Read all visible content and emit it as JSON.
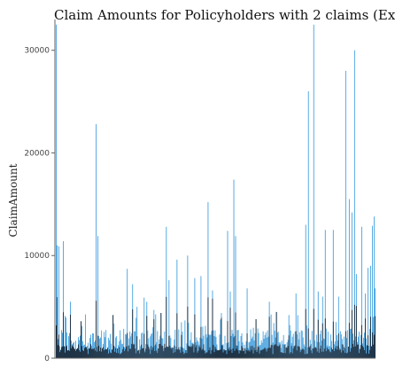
{
  "chart_data": {
    "type": "bar",
    "title": "Claim Amounts for Policyholders with 2 claims (Ex",
    "xlabel": "",
    "ylabel": "ClaimAmount",
    "ylim": [
      0,
      33000
    ],
    "y_ticks": [
      0,
      10000,
      20000,
      30000
    ],
    "y_tick_labels": [
      "0",
      "10000",
      "20000",
      "30000"
    ],
    "grid": false,
    "legend": "none",
    "n_bars": 360,
    "colors": {
      "bar": "#4aa3df",
      "dark": "#1b2a3a"
    },
    "spikes": [
      {
        "i": 0,
        "v": 32500
      },
      {
        "i": 1,
        "v": 11000
      },
      {
        "i": 3,
        "v": 10900
      },
      {
        "i": 8,
        "v": 11400
      },
      {
        "i": 16,
        "v": 5500
      },
      {
        "i": 28,
        "v": 3600
      },
      {
        "i": 45,
        "v": 22800
      },
      {
        "i": 47,
        "v": 11900
      },
      {
        "i": 64,
        "v": 4200
      },
      {
        "i": 80,
        "v": 8700
      },
      {
        "i": 86,
        "v": 7200
      },
      {
        "i": 91,
        "v": 5000
      },
      {
        "i": 99,
        "v": 5900
      },
      {
        "i": 102,
        "v": 5500
      },
      {
        "i": 110,
        "v": 4700
      },
      {
        "i": 118,
        "v": 4400
      },
      {
        "i": 124,
        "v": 12800
      },
      {
        "i": 127,
        "v": 7600
      },
      {
        "i": 136,
        "v": 9600
      },
      {
        "i": 141,
        "v": 3500
      },
      {
        "i": 148,
        "v": 10000
      },
      {
        "i": 156,
        "v": 7800
      },
      {
        "i": 163,
        "v": 8000
      },
      {
        "i": 171,
        "v": 15200
      },
      {
        "i": 176,
        "v": 6600
      },
      {
        "i": 186,
        "v": 4400
      },
      {
        "i": 193,
        "v": 12400
      },
      {
        "i": 196,
        "v": 6500
      },
      {
        "i": 200,
        "v": 17400
      },
      {
        "i": 202,
        "v": 11900
      },
      {
        "i": 215,
        "v": 6800
      },
      {
        "i": 225,
        "v": 3800
      },
      {
        "i": 240,
        "v": 5500
      },
      {
        "i": 248,
        "v": 4500
      },
      {
        "i": 262,
        "v": 4200
      },
      {
        "i": 270,
        "v": 6300
      },
      {
        "i": 281,
        "v": 13000
      },
      {
        "i": 284,
        "v": 26000
      },
      {
        "i": 290,
        "v": 32500
      },
      {
        "i": 295,
        "v": 6500
      },
      {
        "i": 300,
        "v": 6000
      },
      {
        "i": 303,
        "v": 12500
      },
      {
        "i": 312,
        "v": 12500
      },
      {
        "i": 318,
        "v": 6000
      },
      {
        "i": 326,
        "v": 28000
      },
      {
        "i": 330,
        "v": 15500
      },
      {
        "i": 333,
        "v": 14200
      },
      {
        "i": 336,
        "v": 30000
      },
      {
        "i": 338,
        "v": 8200
      },
      {
        "i": 344,
        "v": 12800
      },
      {
        "i": 348,
        "v": 6300
      },
      {
        "i": 351,
        "v": 8800
      },
      {
        "i": 354,
        "v": 9000
      },
      {
        "i": 356,
        "v": 12900
      },
      {
        "i": 358,
        "v": 13800
      },
      {
        "i": 359,
        "v": 6800
      }
    ]
  }
}
